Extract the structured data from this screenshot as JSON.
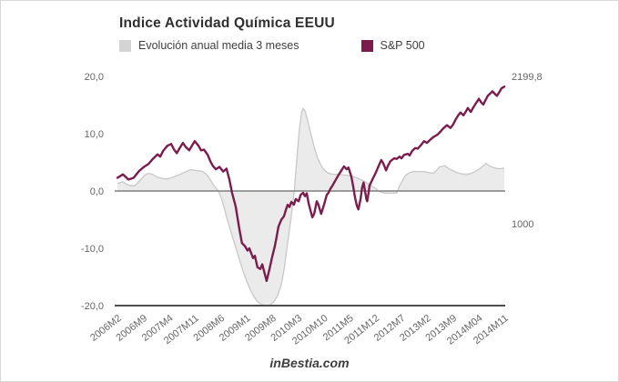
{
  "header": {
    "title": "Indice Actividad Química EEUU",
    "legend": [
      {
        "label": "Evolución anual media 3 meses",
        "color": "#d4d4d4"
      },
      {
        "label": "S&P 500",
        "color": "#7a1d4d"
      }
    ]
  },
  "watermark": "inBestia.com",
  "colors": {
    "line": "#7a1d4d",
    "area_fill": "#ebebeb",
    "area_edge": "#c8c8c8",
    "zero_line": "#7f7f7f",
    "axis_line": "#4d4d4d",
    "tick_text": "#666666"
  },
  "chart_data": {
    "type": "area",
    "title": "Indice Actividad Química EEUU",
    "x_unit": "months since 2006M2",
    "grid": "off",
    "legend_position": "top",
    "x_ticks": [
      {
        "pos": 0,
        "label": "2006M2"
      },
      {
        "pos": 7,
        "label": "2006M9"
      },
      {
        "pos": 14,
        "label": "2007M4"
      },
      {
        "pos": 21,
        "label": "2007M11"
      },
      {
        "pos": 28,
        "label": "2008M6"
      },
      {
        "pos": 35,
        "label": "2009M1"
      },
      {
        "pos": 42,
        "label": "2009M8"
      },
      {
        "pos": 49,
        "label": "2010M3"
      },
      {
        "pos": 56,
        "label": "2010M10"
      },
      {
        "pos": 63,
        "label": "2011M5"
      },
      {
        "pos": 70,
        "label": "2011M12"
      },
      {
        "pos": 77,
        "label": "2012M7"
      },
      {
        "pos": 84,
        "label": "2013M2"
      },
      {
        "pos": 91,
        "label": "2013M9"
      },
      {
        "pos": 98,
        "label": "2014M04"
      },
      {
        "pos": 105,
        "label": "2014M11"
      }
    ],
    "y_left": {
      "min": -20,
      "max": 20,
      "ticks": [
        {
          "value": 20,
          "label": "20,0"
        },
        {
          "value": 10,
          "label": "10,0"
        },
        {
          "value": 0,
          "label": "0,0"
        },
        {
          "value": -10,
          "label": "-10,0"
        },
        {
          "value": -20,
          "label": "-20,0"
        }
      ]
    },
    "y_right_labels": [
      {
        "label": "2199,8",
        "at_value": 20.0
      },
      {
        "label": "1000",
        "at_value": -5.7
      }
    ],
    "series": [
      {
        "name": "Evolución anual media 3 meses",
        "type": "area",
        "baseline": 0,
        "fill": "#ebebeb",
        "edge": "#c8c8c8",
        "points": [
          [
            0,
            1.3
          ],
          [
            1.5,
            1.6
          ],
          [
            3,
            1.0
          ],
          [
            4.7,
            0.9
          ],
          [
            6.2,
            1.9
          ],
          [
            7.4,
            2.8
          ],
          [
            8.4,
            3.1
          ],
          [
            9.6,
            2.9
          ],
          [
            10.9,
            2.4
          ],
          [
            12.1,
            2.2
          ],
          [
            13.3,
            2.1
          ],
          [
            14.6,
            2.3
          ],
          [
            15.8,
            2.6
          ],
          [
            17,
            2.9
          ],
          [
            18.3,
            3.3
          ],
          [
            19.8,
            3.7
          ],
          [
            21,
            3.6
          ],
          [
            22.2,
            3.5
          ],
          [
            23.2,
            3.4
          ],
          [
            24.2,
            2.9
          ],
          [
            25.2,
            2.0
          ],
          [
            25.9,
            1.2
          ],
          [
            26.7,
            0.5
          ],
          [
            27.4,
            0.0
          ],
          [
            28.2,
            -1.2
          ],
          [
            28.9,
            -2.8
          ],
          [
            29.6,
            -4.5
          ],
          [
            30.4,
            -6.2
          ],
          [
            31.1,
            -7.8
          ],
          [
            32.1,
            -9.8
          ],
          [
            33.1,
            -12.0
          ],
          [
            34.1,
            -14.0
          ],
          [
            35.1,
            -15.8
          ],
          [
            36.1,
            -17.3
          ],
          [
            37.1,
            -18.5
          ],
          [
            38,
            -19.3
          ],
          [
            39,
            -19.8
          ],
          [
            40.3,
            -20.0
          ],
          [
            41.5,
            -19.9
          ],
          [
            42.5,
            -19.3
          ],
          [
            43.5,
            -18.2
          ],
          [
            44.5,
            -16.3
          ],
          [
            45.2,
            -13.8
          ],
          [
            45.9,
            -10.5
          ],
          [
            46.7,
            -6.8
          ],
          [
            47.4,
            -3.2
          ],
          [
            48,
            0.0
          ],
          [
            48.5,
            4.0
          ],
          [
            49,
            8.0
          ],
          [
            49.5,
            11.5
          ],
          [
            50,
            13.8
          ],
          [
            50.4,
            14.4
          ],
          [
            50.9,
            14.0
          ],
          [
            51.5,
            12.6
          ],
          [
            52.1,
            11.0
          ],
          [
            52.9,
            9.0
          ],
          [
            53.6,
            7.2
          ],
          [
            54.3,
            5.8
          ],
          [
            55.1,
            4.7
          ],
          [
            55.8,
            3.9
          ],
          [
            56.8,
            3.3
          ],
          [
            57.8,
            3.0
          ],
          [
            59,
            2.9
          ],
          [
            60.3,
            2.9
          ],
          [
            61.5,
            2.8
          ],
          [
            62.7,
            2.7
          ],
          [
            64,
            2.5
          ],
          [
            65.2,
            2.2
          ],
          [
            66.4,
            1.9
          ],
          [
            67.7,
            1.4
          ],
          [
            68.9,
            0.9
          ],
          [
            70.2,
            0.4
          ],
          [
            71.1,
            -0.1
          ],
          [
            72.1,
            -0.3
          ],
          [
            73.4,
            -0.4
          ],
          [
            74.6,
            -0.4
          ],
          [
            75.8,
            -0.35
          ],
          [
            76.6,
            0.9
          ],
          [
            77.5,
            2.0
          ],
          [
            78.3,
            2.8
          ],
          [
            79.3,
            3.2
          ],
          [
            80.3,
            3.4
          ],
          [
            81.5,
            3.4
          ],
          [
            83.2,
            3.4
          ],
          [
            84.5,
            3.2
          ],
          [
            85.7,
            3.1
          ],
          [
            86.5,
            3.5
          ],
          [
            87.4,
            4.2
          ],
          [
            88.9,
            4.4
          ],
          [
            89.9,
            3.9
          ],
          [
            91.2,
            3.5
          ],
          [
            92.1,
            3.2
          ],
          [
            93.4,
            3.0
          ],
          [
            94.8,
            2.9
          ],
          [
            95.6,
            3.0
          ],
          [
            96.8,
            3.3
          ],
          [
            98.1,
            3.8
          ],
          [
            99.3,
            4.4
          ],
          [
            100,
            4.8
          ],
          [
            101,
            4.4
          ],
          [
            102,
            4.1
          ],
          [
            103.2,
            3.9
          ],
          [
            104.2,
            3.9
          ],
          [
            105,
            4.0
          ]
        ]
      },
      {
        "name": "S&P 500",
        "type": "line",
        "color": "#7a1d4d",
        "points": [
          [
            0,
            2.3
          ],
          [
            1.5,
            2.9
          ],
          [
            3,
            2.0
          ],
          [
            4.4,
            2.3
          ],
          [
            5.9,
            3.5
          ],
          [
            7.2,
            4.2
          ],
          [
            8.4,
            4.7
          ],
          [
            9.6,
            5.6
          ],
          [
            10.9,
            6.4
          ],
          [
            11.6,
            6.0
          ],
          [
            12.4,
            7.0
          ],
          [
            13.6,
            7.9
          ],
          [
            14.6,
            8.2
          ],
          [
            15.3,
            7.3
          ],
          [
            16.1,
            6.6
          ],
          [
            17,
            7.6
          ],
          [
            17.8,
            8.4
          ],
          [
            18.5,
            7.7
          ],
          [
            19.5,
            7.1
          ],
          [
            20.3,
            8.0
          ],
          [
            21,
            8.7
          ],
          [
            22,
            7.9
          ],
          [
            22.7,
            7.1
          ],
          [
            23.5,
            7.2
          ],
          [
            24.5,
            6.3
          ],
          [
            25.2,
            5.2
          ],
          [
            25.9,
            4.4
          ],
          [
            26.7,
            3.8
          ],
          [
            27.7,
            4.2
          ],
          [
            28.7,
            3.4
          ],
          [
            29.6,
            3.9
          ],
          [
            30.4,
            2.0
          ],
          [
            31.1,
            -0.3
          ],
          [
            32.1,
            -2.7
          ],
          [
            33.1,
            -6.7
          ],
          [
            33.8,
            -9.1
          ],
          [
            34.6,
            -9.6
          ],
          [
            35.3,
            -10.4
          ],
          [
            35.8,
            -10.0
          ],
          [
            36.8,
            -11.7
          ],
          [
            37.3,
            -11.3
          ],
          [
            38,
            -13.3
          ],
          [
            38.8,
            -13.6
          ],
          [
            39.3,
            -12.8
          ],
          [
            40.5,
            -15.7
          ],
          [
            41.3,
            -13.5
          ],
          [
            42,
            -11.5
          ],
          [
            42.7,
            -9.7
          ],
          [
            43.2,
            -8.0
          ],
          [
            43.7,
            -6.2
          ],
          [
            44.5,
            -5.0
          ],
          [
            45.2,
            -4.4
          ],
          [
            45.7,
            -3.3
          ],
          [
            46.2,
            -2.4
          ],
          [
            46.7,
            -2.8
          ],
          [
            47.2,
            -1.9
          ],
          [
            47.9,
            -2.4
          ],
          [
            48.4,
            -1.4
          ],
          [
            49.2,
            -1.8
          ],
          [
            49.7,
            -0.7
          ],
          [
            50.4,
            -0.3
          ],
          [
            50.9,
            -0.9
          ],
          [
            51.4,
            -0.4
          ],
          [
            51.9,
            -2.2
          ],
          [
            52.9,
            -4.6
          ],
          [
            53.4,
            -4.0
          ],
          [
            54.1,
            -1.8
          ],
          [
            54.5,
            -2.3
          ],
          [
            55.3,
            -4.0
          ],
          [
            56.1,
            -2.3
          ],
          [
            56.8,
            -0.7
          ],
          [
            57.3,
            -0.3
          ],
          [
            57.8,
            0.4
          ],
          [
            58.5,
            1.1
          ],
          [
            59.3,
            2.0
          ],
          [
            60,
            2.8
          ],
          [
            60.8,
            3.6
          ],
          [
            61.5,
            4.3
          ],
          [
            62.2,
            3.8
          ],
          [
            62.7,
            4.1
          ],
          [
            63.5,
            2.5
          ],
          [
            64,
            0.8
          ],
          [
            64.5,
            -1.2
          ],
          [
            65,
            -2.6
          ],
          [
            65.4,
            -3.2
          ],
          [
            66,
            -1.4
          ],
          [
            66.4,
            0.6
          ],
          [
            66.8,
            1.5
          ],
          [
            67.2,
            0.0
          ],
          [
            67.6,
            -1.5
          ],
          [
            67.8,
            -1.8
          ],
          [
            68.2,
            -0.2
          ],
          [
            68.4,
            0.9
          ],
          [
            69.2,
            2.0
          ],
          [
            70.2,
            3.3
          ],
          [
            70.9,
            4.4
          ],
          [
            71.6,
            5.4
          ],
          [
            72.1,
            4.9
          ],
          [
            72.9,
            3.6
          ],
          [
            73.4,
            4.4
          ],
          [
            74.1,
            5.2
          ],
          [
            75.1,
            5.7
          ],
          [
            75.8,
            5.6
          ],
          [
            76.6,
            6.0
          ],
          [
            77.1,
            5.7
          ],
          [
            77.8,
            6.3
          ],
          [
            78.8,
            6.5
          ],
          [
            79.3,
            6.2
          ],
          [
            80,
            7.0
          ],
          [
            80.8,
            7.5
          ],
          [
            81.5,
            7.4
          ],
          [
            82.5,
            8.1
          ],
          [
            83.2,
            8.7
          ],
          [
            84,
            8.4
          ],
          [
            85,
            9.0
          ],
          [
            85.7,
            9.4
          ],
          [
            86.5,
            9.7
          ],
          [
            87,
            9.9
          ],
          [
            87.7,
            10.4
          ],
          [
            88.4,
            10.9
          ],
          [
            89.4,
            11.5
          ],
          [
            90.4,
            11.0
          ],
          [
            91.1,
            11.6
          ],
          [
            91.9,
            12.6
          ],
          [
            92.6,
            13.3
          ],
          [
            93.1,
            13.7
          ],
          [
            93.9,
            13.2
          ],
          [
            94.6,
            13.9
          ],
          [
            95.1,
            14.5
          ],
          [
            95.9,
            13.8
          ],
          [
            96.6,
            14.6
          ],
          [
            97.3,
            15.3
          ],
          [
            98.1,
            16.1
          ],
          [
            98.8,
            15.4
          ],
          [
            99.3,
            15.1
          ],
          [
            100,
            16.0
          ],
          [
            100.5,
            16.6
          ],
          [
            101.3,
            17.1
          ],
          [
            101.8,
            17.4
          ],
          [
            102.5,
            16.9
          ],
          [
            103,
            16.6
          ],
          [
            103.7,
            17.3
          ],
          [
            104.2,
            17.9
          ],
          [
            105,
            18.2
          ]
        ]
      }
    ]
  }
}
